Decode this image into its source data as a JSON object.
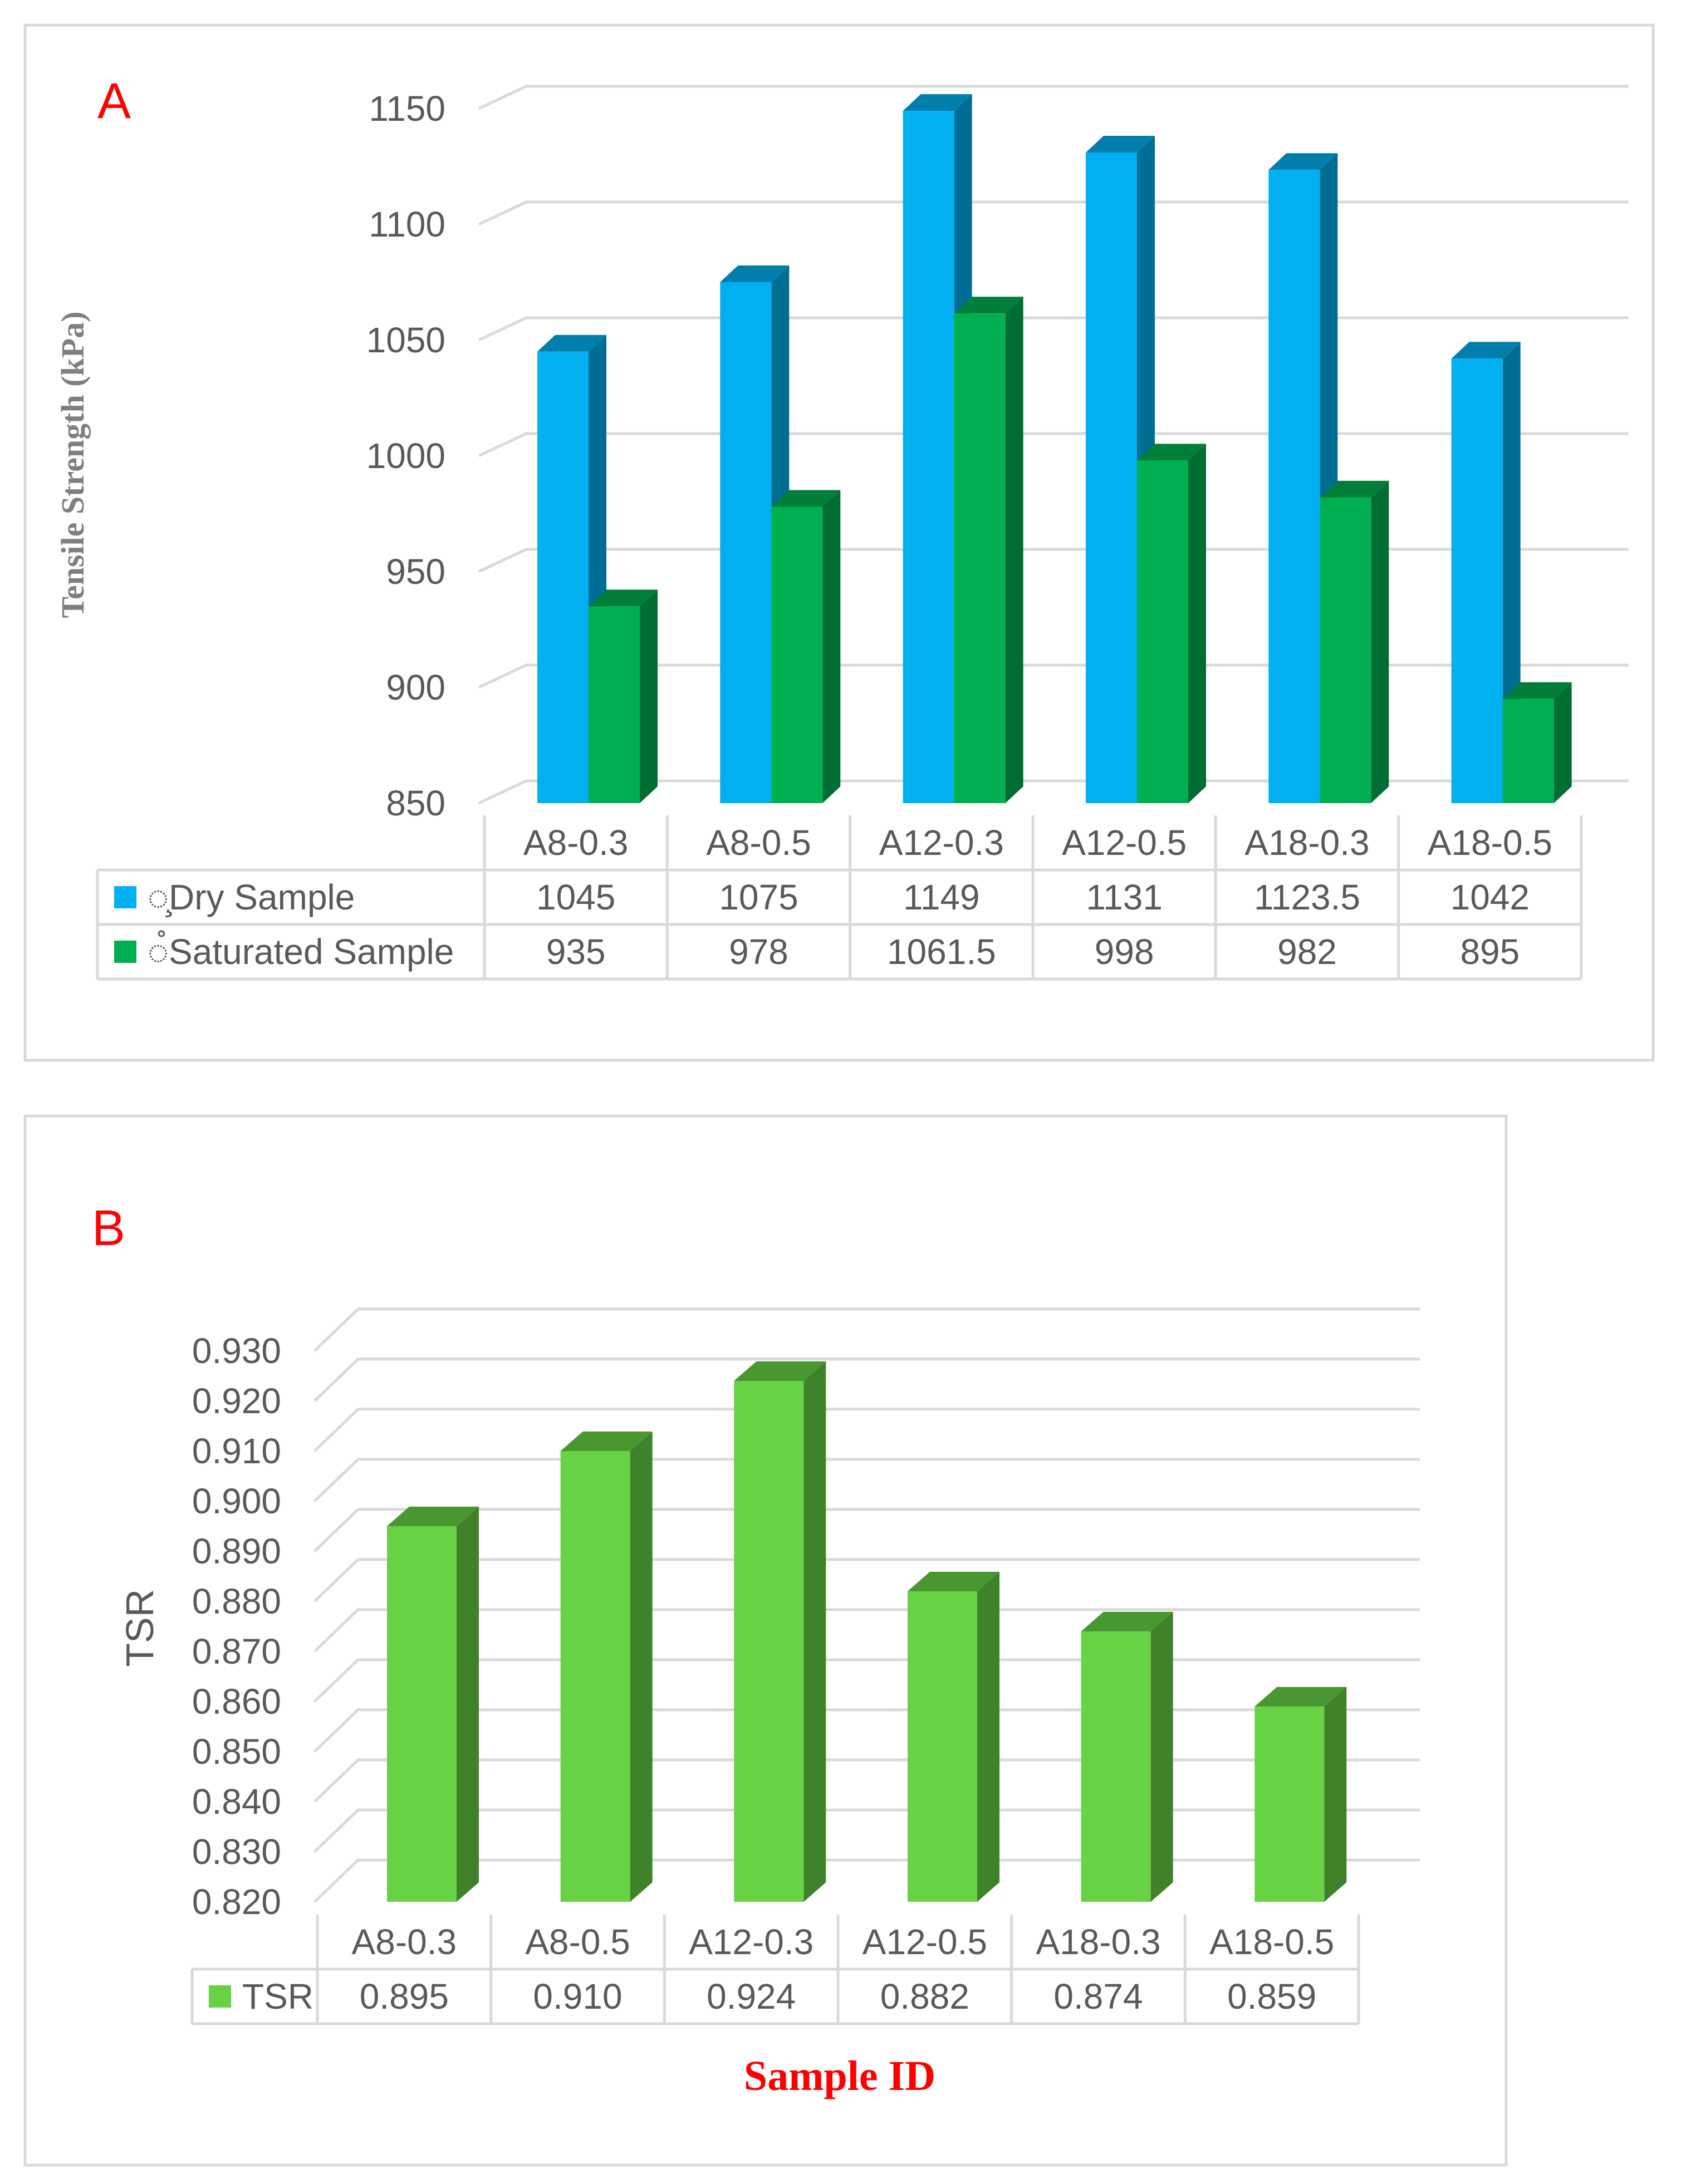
{
  "chart_data": [
    {
      "type": "bar",
      "panel_label": "A",
      "title": "",
      "xlabel": "",
      "ylabel": "Tensile Strength (kPa)",
      "ylim": [
        850,
        1150
      ],
      "yticks": [
        "850",
        "900",
        "950",
        "1000",
        "1050",
        "1100",
        "1150"
      ],
      "grid": true,
      "legend": "data-table",
      "categories": [
        "A8-0.3",
        "A8-0.5",
        "A12-0.3",
        "A12-0.5",
        "A18-0.3",
        "A18-0.5"
      ],
      "series": [
        {
          "name": "Dry Sample",
          "glyph": "̧",
          "color": "#00b0f0",
          "values": [
            1045,
            1075,
            1149,
            1131,
            1123.5,
            1042
          ],
          "labels": [
            "1045",
            "1075",
            "1149",
            "1131",
            "1123.5",
            "1042"
          ]
        },
        {
          "name": "Saturated Sample",
          "glyph": "̊",
          "color": "#00b050",
          "values": [
            935,
            978,
            1061.5,
            998,
            982,
            895
          ],
          "labels": [
            "935",
            "978",
            "1061.5",
            "998",
            "982",
            "895"
          ]
        }
      ]
    },
    {
      "type": "bar",
      "panel_label": "B",
      "title": "",
      "xlabel": "Sample ID",
      "ylabel": "TSR",
      "ylim": [
        0.82,
        0.93
      ],
      "yticks": [
        "0.820",
        "0.830",
        "0.840",
        "0.850",
        "0.860",
        "0.870",
        "0.880",
        "0.890",
        "0.900",
        "0.910",
        "0.920",
        "0.930"
      ],
      "grid": true,
      "legend": "data-table",
      "categories": [
        "A8-0.3",
        "A8-0.5",
        "A12-0.3",
        "A12-0.5",
        "A18-0.3",
        "A18-0.5"
      ],
      "series": [
        {
          "name": "TSR",
          "color": "#66d244",
          "values": [
            0.895,
            0.91,
            0.924,
            0.882,
            0.874,
            0.859
          ],
          "labels": [
            "0.895",
            "0.910",
            "0.924",
            "0.882",
            "0.874",
            "0.859"
          ]
        }
      ]
    }
  ]
}
